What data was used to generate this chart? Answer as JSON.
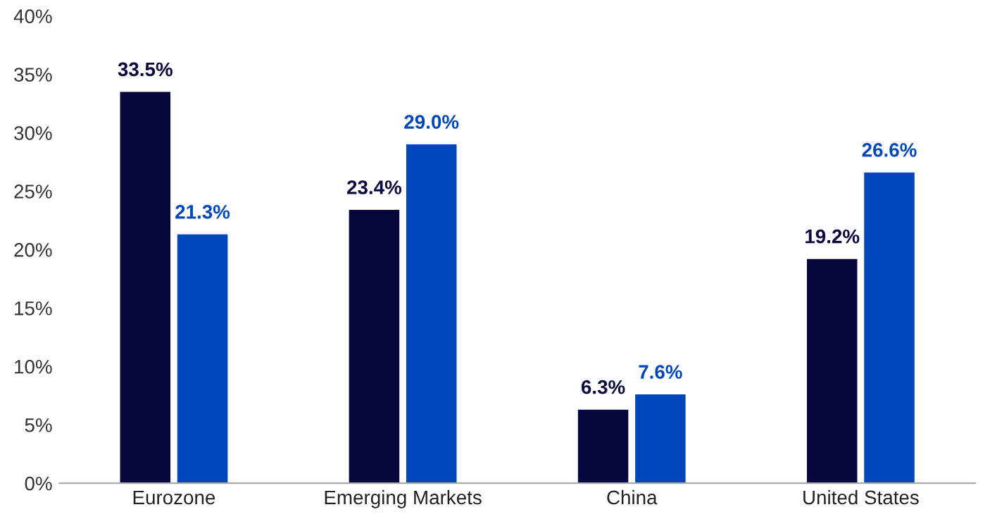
{
  "chart_data": {
    "type": "bar",
    "categories": [
      "Eurozone",
      "Emerging Markets",
      "China",
      "United States"
    ],
    "series": [
      {
        "color": "#07073d",
        "values": [
          33.5,
          23.4,
          6.3,
          19.2
        ],
        "value_labels": [
          "33.5%",
          "23.4%",
          "6.3%",
          "19.2%"
        ]
      },
      {
        "color": "#0047bb",
        "values": [
          21.3,
          29.0,
          7.6,
          26.6
        ],
        "value_labels": [
          "21.3%",
          "29.0%",
          "7.6%",
          "26.6%"
        ]
      }
    ],
    "ylim": [
      0,
      40
    ],
    "yticks": [
      {
        "value": 0,
        "label": "0%"
      },
      {
        "value": 5,
        "label": "5%"
      },
      {
        "value": 10,
        "label": "10%"
      },
      {
        "value": 15,
        "label": "15%"
      },
      {
        "value": 20,
        "label": "20%"
      },
      {
        "value": 25,
        "label": "25%"
      },
      {
        "value": 30,
        "label": "30%"
      },
      {
        "value": 35,
        "label": "35%"
      },
      {
        "value": 40,
        "label": "40%"
      }
    ],
    "grid": false
  }
}
